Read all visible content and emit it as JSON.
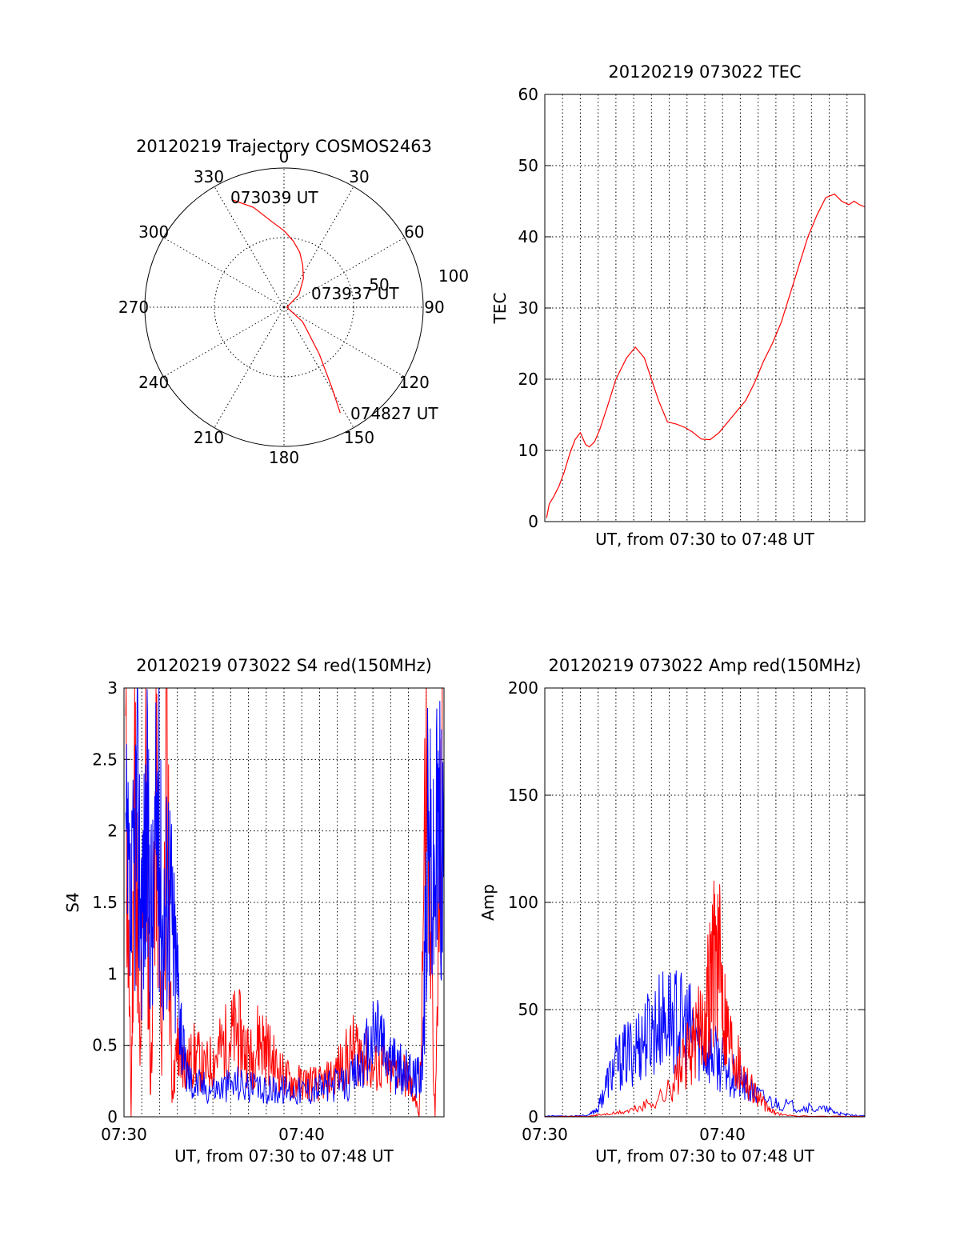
{
  "colors": {
    "red": "#ff0000",
    "blue": "#0000ff",
    "axis": "#000000"
  },
  "chart_data": [
    {
      "type": "polar",
      "title": "20120219 Trajectory COSMOS2463",
      "angle_labels": [
        "0",
        "30",
        "60",
        "90",
        "120",
        "150",
        "180",
        "210",
        "240",
        "270",
        "300",
        "330"
      ],
      "radial_labels": [
        "50",
        "100"
      ],
      "rlim": [
        0,
        100
      ],
      "grid": true,
      "trajectory": {
        "azimuth_deg": [
          334,
          343,
          352,
          0,
          8,
          16,
          24,
          34,
          50,
          90,
          128,
          143,
          149,
          152
        ],
        "radius": [
          86,
          75,
          62,
          55,
          48,
          41,
          33,
          25,
          14,
          2,
          17,
          42,
          66,
          86
        ]
      },
      "annotations": [
        "073039 UT",
        "073937 UT",
        "074827 UT"
      ]
    },
    {
      "type": "line",
      "title": "20120219 073022 TEC",
      "xlabel": "UT, from 07:30 to 07:48 UT",
      "ylabel": "TEC",
      "xlim": [
        0,
        18
      ],
      "ylim": [
        0,
        60
      ],
      "yticks": [
        "0",
        "10",
        "20",
        "30",
        "40",
        "50",
        "60"
      ],
      "grid": true,
      "series": [
        {
          "color": "red",
          "x": [
            0.1,
            0.25,
            0.5,
            0.8,
            1.1,
            1.4,
            1.7,
            2.0,
            2.3,
            2.5,
            2.8,
            3.1,
            3.5,
            4.0,
            4.6,
            5.1,
            5.6,
            6.0,
            6.4,
            6.9,
            7.4,
            7.9,
            8.3,
            8.8,
            9.3,
            9.8,
            10.3,
            10.8,
            11.3,
            11.8,
            12.3,
            12.8,
            13.3,
            13.8,
            14.3,
            14.8,
            15.3,
            15.8,
            16.3,
            16.7,
            17.1,
            17.4,
            17.7,
            18.0
          ],
          "values": [
            0.5,
            2.5,
            3.5,
            5,
            7,
            9.5,
            11.5,
            12.5,
            10.8,
            10.5,
            11.2,
            13,
            16,
            20,
            23,
            24.5,
            23,
            20,
            17,
            14,
            13.7,
            13.2,
            12.6,
            11.6,
            11.5,
            12.5,
            14,
            15.5,
            17,
            19.5,
            22.5,
            25,
            28,
            32,
            36,
            40,
            43,
            45.5,
            46,
            45,
            44.5,
            45,
            44.5,
            44.2
          ]
        }
      ]
    },
    {
      "type": "line",
      "title": "20120219 073022 S4 red(150MHz)",
      "xlabel": "UT, from 07:30 to 07:48 UT",
      "ylabel": "S4",
      "xlim": [
        0,
        18
      ],
      "ylim": [
        0,
        3
      ],
      "xticks": [
        "07:30",
        "07:40"
      ],
      "yticks": [
        "0",
        "0.5",
        "1",
        "1.5",
        "2",
        "2.5",
        "3"
      ],
      "grid": true,
      "series": [
        {
          "color": "red",
          "x": [
            0.1,
            0.4,
            0.6,
            0.9,
            1.2,
            1.5,
            1.8,
            2.1,
            2.4,
            2.7,
            3.0,
            3.2,
            3.6,
            4.0,
            4.5,
            5.0,
            5.5,
            6.0,
            6.4,
            6.8,
            7.2,
            7.6,
            8.0,
            8.5,
            9.0,
            9.5,
            10.0,
            10.5,
            11.0,
            11.5,
            12.0,
            12.5,
            13.0,
            13.5,
            14.0,
            14.5,
            15.0,
            15.5,
            16.0,
            16.3,
            16.6,
            17.0,
            17.5,
            17.9
          ],
          "values": [
            3,
            0,
            3,
            0.4,
            3,
            0.2,
            3,
            0.5,
            3,
            0.2,
            0.6,
            0.5,
            0.45,
            0.55,
            0.4,
            0.5,
            0.6,
            0.7,
            0.75,
            0.6,
            0.5,
            0.7,
            0.6,
            0.45,
            0.35,
            0.3,
            0.3,
            0.3,
            0.28,
            0.32,
            0.4,
            0.5,
            0.6,
            0.55,
            0.4,
            0.45,
            0.35,
            0.45,
            0.3,
            0.2,
            0.0,
            3,
            0.0,
            3
          ]
        },
        {
          "color": "blue",
          "x": [
            0.1,
            0.4,
            0.7,
            1.0,
            1.3,
            1.6,
            1.9,
            2.2,
            2.5,
            2.8,
            3.1,
            3.4,
            3.8,
            4.3,
            5.0,
            5.7,
            6.4,
            7.1,
            7.8,
            8.5,
            9.2,
            9.9,
            10.6,
            11.3,
            12.0,
            12.7,
            13.3,
            13.8,
            14.3,
            14.7,
            15.2,
            15.7,
            16.2,
            16.5,
            16.8,
            17.1,
            17.4,
            17.7,
            18.0
          ],
          "values": [
            2.2,
            1.6,
            2.7,
            1.9,
            2.4,
            1.7,
            2.8,
            1.6,
            2.2,
            1.5,
            1.1,
            0.45,
            0.3,
            0.28,
            0.25,
            0.27,
            0.3,
            0.26,
            0.22,
            0.25,
            0.24,
            0.23,
            0.25,
            0.26,
            0.28,
            0.3,
            0.45,
            0.6,
            0.8,
            0.55,
            0.45,
            0.4,
            0.35,
            0.35,
            0.5,
            2.5,
            2.0,
            2.6,
            2.3
          ]
        }
      ]
    },
    {
      "type": "line",
      "title": "20120219 073022 Amp red(150MHz)",
      "xlabel": "UT, from 07:30 to 07:48 UT",
      "ylabel": "Amp",
      "xlim": [
        0,
        18
      ],
      "ylim": [
        0,
        200
      ],
      "xticks": [
        "07:30",
        "07:40"
      ],
      "yticks": [
        "0",
        "50",
        "100",
        "150",
        "200"
      ],
      "grid": true,
      "series": [
        {
          "color": "blue",
          "x": [
            0,
            1.5,
            2.5,
            3.0,
            3.5,
            4.0,
            4.5,
            5.0,
            5.5,
            6.0,
            6.5,
            7.0,
            7.5,
            8.0,
            8.5,
            9.0,
            9.5,
            10.0,
            10.5,
            11.0,
            11.5,
            12.0,
            13.0,
            14.0,
            15.0,
            16.0,
            16.5,
            17.0,
            18.0
          ],
          "values": [
            0.5,
            0.5,
            1,
            5,
            20,
            30,
            35,
            40,
            45,
            50,
            55,
            58,
            55,
            52,
            48,
            40,
            35,
            30,
            25,
            20,
            15,
            12,
            8,
            6,
            5,
            4,
            2,
            1,
            0.5
          ]
        },
        {
          "color": "red",
          "x": [
            0,
            2.5,
            3.0,
            4.0,
            5.0,
            6.0,
            7.0,
            7.5,
            8.0,
            8.5,
            9.0,
            9.3,
            9.6,
            9.9,
            10.2,
            10.6,
            11.0,
            11.5,
            12.0,
            12.5,
            13.0,
            14.0,
            18.0
          ],
          "values": [
            0.2,
            0.3,
            1,
            2,
            4,
            8,
            15,
            25,
            35,
            45,
            60,
            80,
            100,
            85,
            55,
            40,
            30,
            20,
            12,
            5,
            2,
            0.5,
            0.2
          ]
        }
      ]
    }
  ]
}
